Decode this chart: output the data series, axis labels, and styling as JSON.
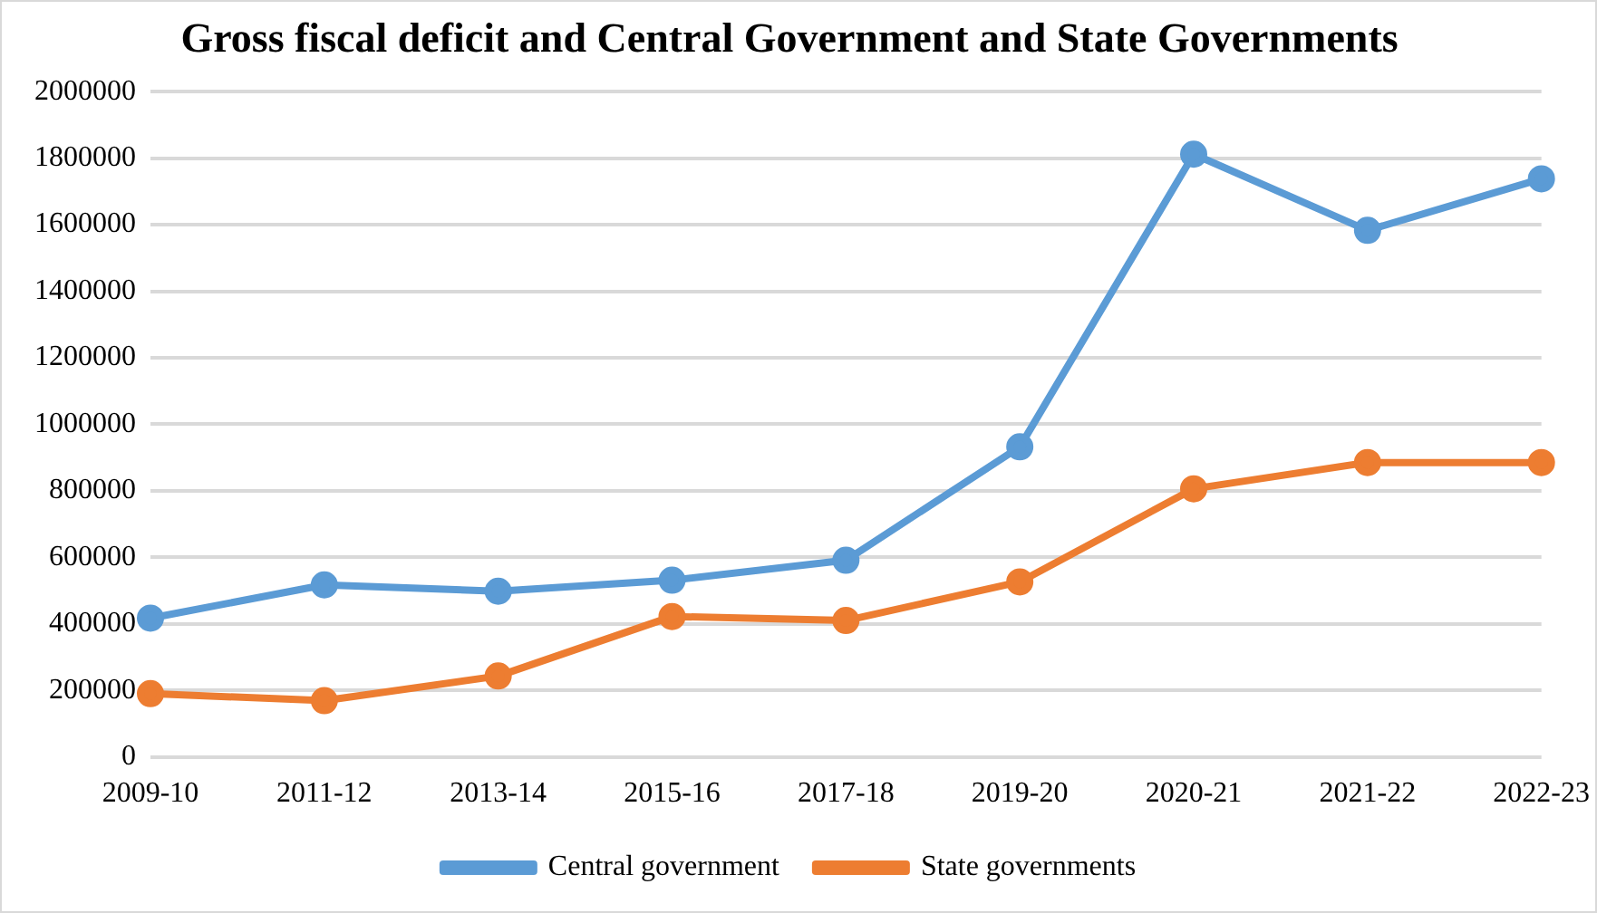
{
  "chart_data": {
    "type": "line",
    "title": "Gross fiscal deficit and Central Government and State Governments",
    "categories": [
      "2009-10",
      "2011-12",
      "2013-14",
      "2015-16",
      "2017-18",
      "2019-20",
      "2020-21",
      "2021-22",
      "2022-23"
    ],
    "series": [
      {
        "name": "Central government",
        "color": "#5b9bd5",
        "values": [
          417000,
          517000,
          498000,
          531000,
          591000,
          932000,
          1812000,
          1583000,
          1738000
        ]
      },
      {
        "name": "State governments",
        "color": "#ed7d31",
        "values": [
          190000,
          169000,
          243000,
          422000,
          410000,
          526000,
          806000,
          885000,
          885000
        ]
      }
    ],
    "ylim": [
      0,
      2000000
    ],
    "yticks": [
      0,
      200000,
      400000,
      600000,
      800000,
      1000000,
      1200000,
      1400000,
      1600000,
      1800000,
      2000000
    ],
    "grid": "y",
    "legend": "bottom",
    "marker": "circle",
    "line_style": "solid"
  }
}
